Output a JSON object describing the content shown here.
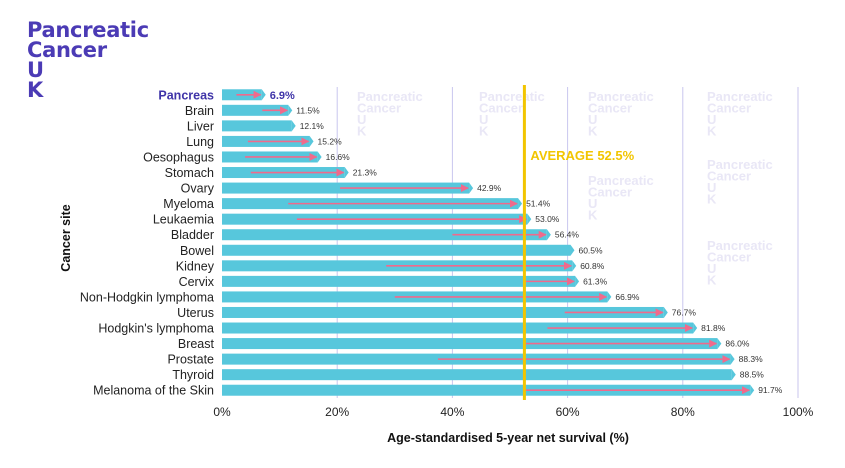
{
  "logo": {
    "line1": "Pancreatic",
    "line2": "Cancer",
    "line3": "U",
    "line4": "K"
  },
  "watermark": {
    "line1": "Pancreatic",
    "line2": "Cancer",
    "line3": "U",
    "line4": "K"
  },
  "colors": {
    "bar": "#57c7dc",
    "arrow": "#f06a8c",
    "average": "#f2c500",
    "brand": "#4b3bb5",
    "grid": "#c9c6ee"
  },
  "chart_data": {
    "type": "bar",
    "orientation": "horizontal",
    "xlabel": "Age-standardised 5-year net survival (%)",
    "ylabel": "Cancer site",
    "xlim": [
      0,
      100
    ],
    "xticks": [
      "0%",
      "20%",
      "40%",
      "60%",
      "80%",
      "100%"
    ],
    "average": {
      "value": 52.5,
      "label": "AVERAGE 52.5%"
    },
    "categories": [
      "Pancreas",
      "Brain",
      "Liver",
      "Lung",
      "Oesophagus",
      "Stomach",
      "Ovary",
      "Myeloma",
      "Leukaemia",
      "Bladder",
      "Bowel",
      "Kidney",
      "Cervix",
      "Non-Hodgkin lymphoma",
      "Uterus",
      "Hodgkin's lymphoma",
      "Breast",
      "Prostate",
      "Thyroid",
      "Melanoma of the Skin"
    ],
    "values": [
      6.9,
      11.5,
      12.1,
      15.2,
      16.6,
      21.3,
      42.9,
      51.4,
      53.0,
      56.4,
      60.5,
      60.8,
      61.3,
      66.9,
      76.7,
      81.8,
      86.0,
      88.3,
      88.5,
      91.7
    ],
    "labels": [
      "6.9%",
      "11.5%",
      "12.1%",
      "15.2%",
      "16.6%",
      "21.3%",
      "42.9%",
      "51.4%",
      "53.0%",
      "56.4%",
      "60.5%",
      "60.8%",
      "61.3%",
      "66.9%",
      "76.7%",
      "81.8%",
      "86.0%",
      "88.3%",
      "88.5%",
      "91.7%"
    ],
    "arrow_from": [
      2.5,
      7,
      null,
      4.5,
      4,
      5,
      20.5,
      11.5,
      13,
      40,
      null,
      28.5,
      52.5,
      30,
      59.5,
      56.5,
      52.5,
      37.5,
      null,
      52.5
    ],
    "highlight": "Pancreas"
  }
}
